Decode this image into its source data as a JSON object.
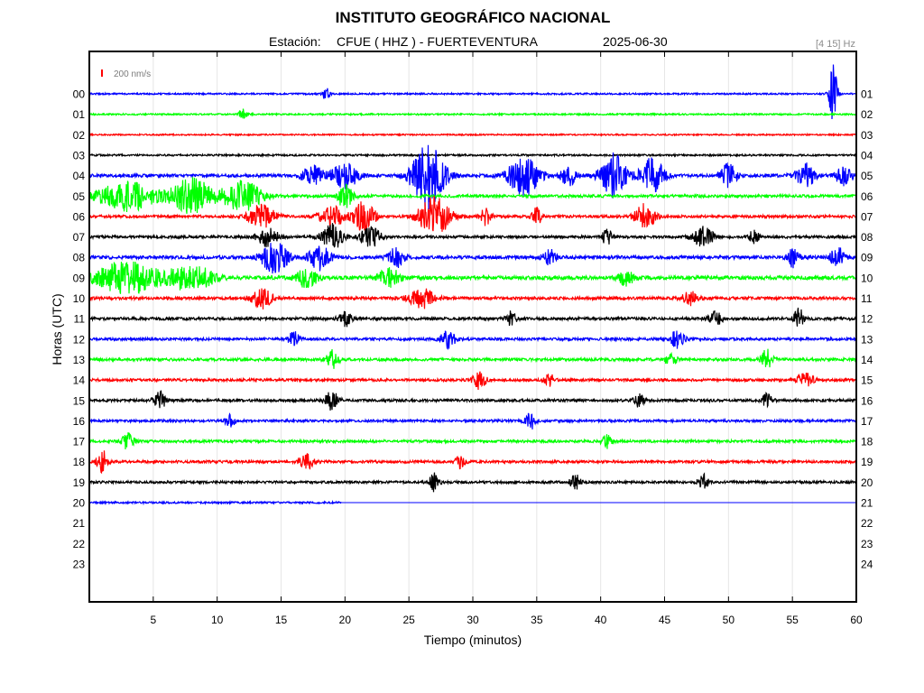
{
  "chart_data": {
    "type": "line",
    "title": "INSTITUTO GEOGRÁFICO NACIONAL",
    "subtitle": {
      "station_label": "Estación:",
      "station": "CFUE ( HHZ ) - FUERTEVENTURA",
      "date": "2025-06-30"
    },
    "filter_band": "[4 15] Hz",
    "scale_bar_label": "200 nm/s",
    "xlabel": "Tiempo (minutos)",
    "ylabel": "Horas (UTC)",
    "xlim": [
      0,
      60
    ],
    "x_ticks": [
      5,
      10,
      15,
      20,
      25,
      30,
      35,
      40,
      45,
      50,
      55,
      60
    ],
    "y_ticks_left": [
      "00",
      "01",
      "02",
      "03",
      "04",
      "05",
      "06",
      "07",
      "08",
      "09",
      "10",
      "11",
      "12",
      "13",
      "14",
      "15",
      "16",
      "17",
      "18",
      "19",
      "20",
      "21",
      "22",
      "23"
    ],
    "y_ticks_right": [
      "01",
      "02",
      "03",
      "04",
      "05",
      "06",
      "07",
      "08",
      "09",
      "10",
      "11",
      "12",
      "13",
      "14",
      "15",
      "16",
      "17",
      "18",
      "19",
      "20",
      "21",
      "22",
      "23",
      "24"
    ],
    "grid": "vertical",
    "trace_colors": [
      "#0000ff",
      "#00ff00",
      "#ff0000",
      "#000000"
    ],
    "series": [
      {
        "hour": "00",
        "color": "#0000ff",
        "amplitude": 0.08,
        "events": [
          [
            18.5,
            0.6,
            0.3
          ],
          [
            58.2,
            3.2,
            0.3
          ]
        ]
      },
      {
        "hour": "01",
        "color": "#00ff00",
        "amplitude": 0.08,
        "events": [
          [
            12,
            0.5,
            0.3
          ]
        ]
      },
      {
        "hour": "02",
        "color": "#ff0000",
        "amplitude": 0.07,
        "events": []
      },
      {
        "hour": "03",
        "color": "#000000",
        "amplitude": 0.09,
        "events": []
      },
      {
        "hour": "04",
        "color": "#0000ff",
        "amplitude": 0.15,
        "events": [
          [
            17.5,
            1.0,
            0.8
          ],
          [
            20,
            1.3,
            1.0
          ],
          [
            26.5,
            3.5,
            1.2
          ],
          [
            34,
            2.0,
            1.2
          ],
          [
            37.5,
            1.0,
            0.6
          ],
          [
            41,
            2.2,
            1.0
          ],
          [
            44,
            1.8,
            0.9
          ],
          [
            50,
            1.2,
            0.6
          ],
          [
            56,
            1.2,
            0.8
          ],
          [
            59,
            1.0,
            0.6
          ]
        ]
      },
      {
        "hour": "05",
        "color": "#00ff00",
        "amplitude": 0.14,
        "events": [
          [
            3,
            1.5,
            2.2
          ],
          [
            8,
            1.8,
            1.6
          ],
          [
            12,
            1.5,
            1.5
          ],
          [
            20,
            1.2,
            0.6
          ]
        ]
      },
      {
        "hour": "06",
        "color": "#ff0000",
        "amplitude": 0.13,
        "events": [
          [
            13.5,
            1.2,
            1.0
          ],
          [
            19,
            1.0,
            1.0
          ],
          [
            21.5,
            1.6,
            0.8
          ],
          [
            27,
            2.0,
            1.2
          ],
          [
            31,
            1.0,
            0.4
          ],
          [
            35,
            0.9,
            0.4
          ],
          [
            43.5,
            1.3,
            0.8
          ]
        ]
      },
      {
        "hour": "07",
        "color": "#000000",
        "amplitude": 0.13,
        "events": [
          [
            14,
            1.0,
            0.8
          ],
          [
            19,
            1.3,
            0.8
          ],
          [
            22,
            1.2,
            0.7
          ],
          [
            40.5,
            0.8,
            0.4
          ],
          [
            48,
            1.0,
            0.8
          ],
          [
            52,
            0.7,
            0.4
          ]
        ]
      },
      {
        "hour": "08",
        "color": "#0000ff",
        "amplitude": 0.16,
        "events": [
          [
            14.5,
            1.6,
            1.0
          ],
          [
            18,
            1.3,
            0.8
          ],
          [
            24,
            1.0,
            0.6
          ],
          [
            36,
            0.9,
            0.5
          ],
          [
            55,
            1.0,
            0.5
          ],
          [
            58.5,
            1.1,
            0.5
          ]
        ]
      },
      {
        "hour": "09",
        "color": "#00ff00",
        "amplitude": 0.18,
        "events": [
          [
            3,
            1.6,
            2.5
          ],
          [
            8,
            1.4,
            1.6
          ],
          [
            17,
            1.0,
            0.8
          ],
          [
            23.5,
            1.0,
            0.8
          ],
          [
            42,
            0.8,
            0.6
          ]
        ]
      },
      {
        "hour": "10",
        "color": "#ff0000",
        "amplitude": 0.14,
        "events": [
          [
            13.5,
            1.0,
            0.8
          ],
          [
            26,
            1.0,
            1.0
          ],
          [
            47,
            0.7,
            0.6
          ]
        ]
      },
      {
        "hour": "11",
        "color": "#000000",
        "amplitude": 0.14,
        "events": [
          [
            20,
            0.8,
            0.5
          ],
          [
            33,
            0.7,
            0.4
          ],
          [
            49,
            0.7,
            0.5
          ],
          [
            55.5,
            1.0,
            0.4
          ]
        ]
      },
      {
        "hour": "12",
        "color": "#0000ff",
        "amplitude": 0.13,
        "events": [
          [
            16,
            0.8,
            0.4
          ],
          [
            28,
            0.9,
            0.6
          ],
          [
            46,
            1.0,
            0.5
          ]
        ]
      },
      {
        "hour": "13",
        "color": "#00ff00",
        "amplitude": 0.14,
        "events": [
          [
            19,
            0.9,
            0.5
          ],
          [
            45.5,
            0.7,
            0.4
          ],
          [
            53,
            1.2,
            0.4
          ]
        ]
      },
      {
        "hour": "14",
        "color": "#ff0000",
        "amplitude": 0.13,
        "events": [
          [
            30.5,
            1.0,
            0.5
          ],
          [
            36,
            0.6,
            0.4
          ],
          [
            56,
            0.7,
            0.6
          ]
        ]
      },
      {
        "hour": "15",
        "color": "#000000",
        "amplitude": 0.13,
        "events": [
          [
            5.5,
            0.9,
            0.5
          ],
          [
            19,
            1.0,
            0.5
          ],
          [
            43,
            0.7,
            0.4
          ],
          [
            53,
            0.7,
            0.4
          ]
        ]
      },
      {
        "hour": "16",
        "color": "#0000ff",
        "amplitude": 0.12,
        "events": [
          [
            11,
            0.6,
            0.4
          ],
          [
            34.5,
            0.9,
            0.4
          ]
        ]
      },
      {
        "hour": "17",
        "color": "#00ff00",
        "amplitude": 0.13,
        "events": [
          [
            3,
            0.8,
            0.5
          ],
          [
            40.5,
            0.7,
            0.4
          ]
        ]
      },
      {
        "hour": "18",
        "color": "#ff0000",
        "amplitude": 0.13,
        "events": [
          [
            1,
            1.2,
            0.4
          ],
          [
            17,
            0.8,
            0.5
          ],
          [
            29,
            0.6,
            0.4
          ]
        ]
      },
      {
        "hour": "19",
        "color": "#000000",
        "amplitude": 0.12,
        "events": [
          [
            27,
            0.9,
            0.4
          ],
          [
            38,
            0.8,
            0.4
          ],
          [
            48,
            0.8,
            0.4
          ]
        ]
      },
      {
        "hour": "20",
        "color": "#0000ff",
        "amplitude": 0.09,
        "end_minute": 19.7,
        "events": []
      }
    ]
  }
}
